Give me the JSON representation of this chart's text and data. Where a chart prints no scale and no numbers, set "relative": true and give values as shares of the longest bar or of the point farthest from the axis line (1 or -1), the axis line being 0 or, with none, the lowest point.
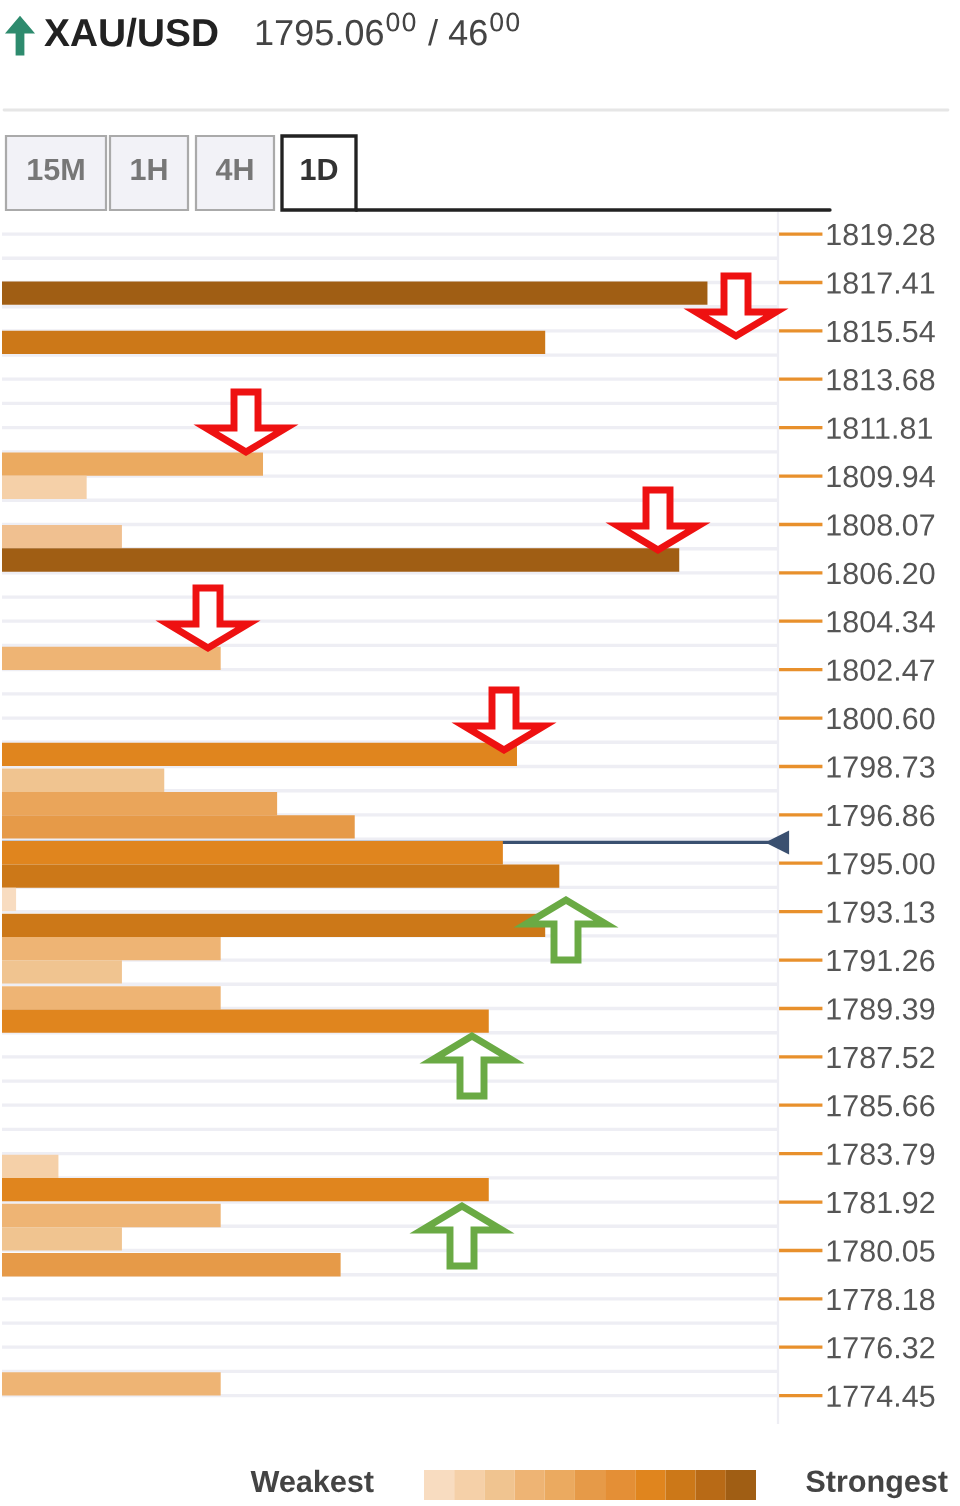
{
  "chart_data": {
    "type": "bar",
    "orientation": "horizontal",
    "relative": true,
    "title": "XAU/USD",
    "subtitle": "1795.06$^{00}$ / 46$^{00}$",
    "x": [
      1817.0,
      1815.1,
      1810.4,
      1809.5,
      1807.6,
      1806.7,
      1802.9,
      1799.2,
      1798.2,
      1797.3,
      1796.4,
      1795.4,
      1794.5,
      1793.6,
      1792.6,
      1791.7,
      1790.8,
      1789.8,
      1788.9,
      1783.3,
      1782.4,
      1781.4,
      1780.5,
      1779.5,
      1774.9
    ],
    "values": [
      1,
      0.77,
      0.37,
      0.12,
      0.17,
      0.96,
      0.31,
      0.73,
      0.23,
      0.39,
      0.5,
      0.71,
      0.79,
      0.02,
      0.77,
      0.31,
      0.17,
      0.31,
      0.69,
      0.08,
      0.69,
      0.31,
      0.17,
      0.48,
      0.31
    ],
    "colors": [
      "#a05e14",
      "#cc7818",
      "#ebaa60",
      "#f5d0a8",
      "#f0c090",
      "#a05e14",
      "#eeb474",
      "#e0851e",
      "#f0c490",
      "#eaa55a",
      "#e69a48",
      "#e0851e",
      "#cc7818",
      "#f8dcc0",
      "#cc7818",
      "#eeb474",
      "#f0c490",
      "#eeb474",
      "#e0851e",
      "#f5d0a8",
      "#e0851e",
      "#eeb474",
      "#f0c490",
      "#e69a48",
      "#eeb474"
    ],
    "ylim": [
      1773.4,
      1820.1
    ],
    "yticks": [
      1819.28,
      1817.41,
      1815.54,
      1813.68,
      1811.81,
      1809.94,
      1808.07,
      {
        "value": 1806.2,
        "label": "1806.20"
      },
      1804.34,
      1802.47,
      {
        "value": 1800.6,
        "label": "1800.60"
      },
      1798.73,
      1796.86,
      {
        "value": 1795,
        "label": "1795.00"
      },
      1793.13,
      1791.26,
      1789.39,
      1787.52,
      1785.66,
      1783.79,
      1781.92,
      1780.05,
      1778.18,
      1776.32,
      1774.45
    ],
    "ref_lines": [
      {
        "axis": "y",
        "value": 1795.8,
        "color": "#3a5070"
      }
    ],
    "tick_labels": "y",
    "grid": "y",
    "annotations": [
      "15M",
      "1H",
      "4H",
      "1D",
      "Weakest",
      "Strongest"
    ]
  }
}
